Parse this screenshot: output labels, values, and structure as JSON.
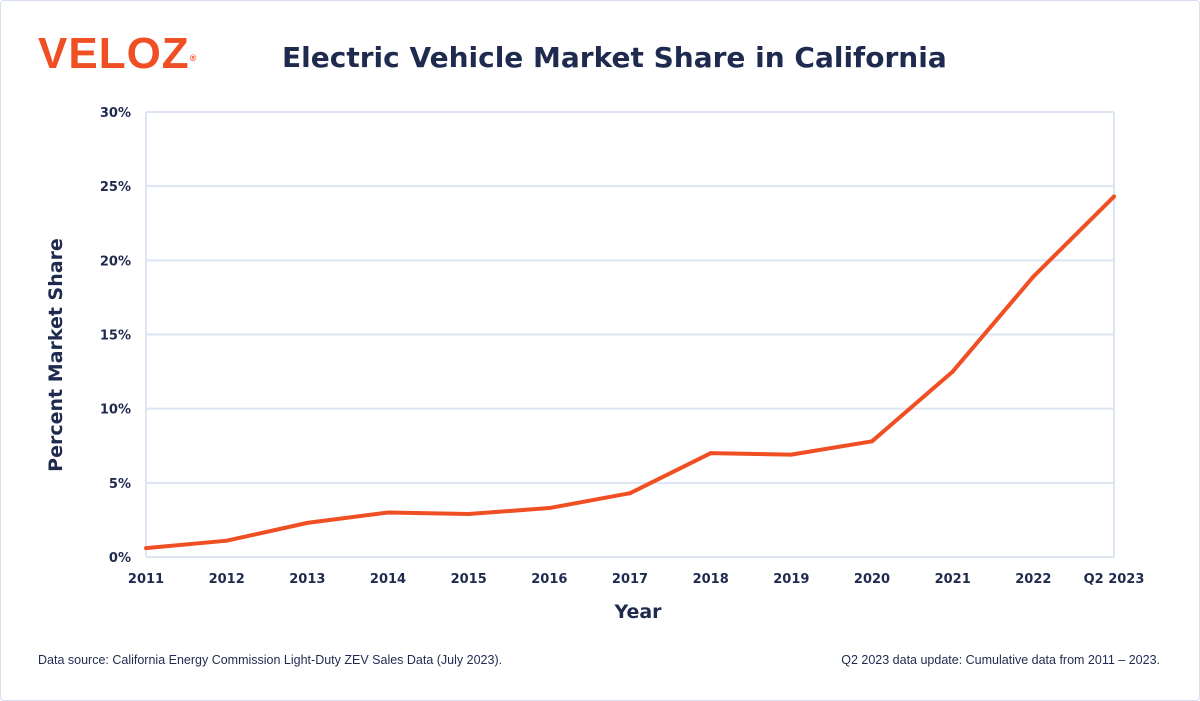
{
  "logo": {
    "text": "VELOZ",
    "mark": "®"
  },
  "footer": {
    "left": "Data source: California Energy Commission Light-Duty ZEV Sales Data (July 2023).",
    "right": "Q2 2023 data update: Cumulative data from 2011 – 2023."
  },
  "colors": {
    "line": "#f04e23",
    "text": "#1f2a4f",
    "grid": "#dde5f3",
    "brand": "#f04e23"
  },
  "chart_data": {
    "type": "line",
    "title": "Electric Vehicle Market Share in California",
    "xlabel": "Year",
    "ylabel": "Percent Market Share",
    "categories": [
      "2011",
      "2012",
      "2013",
      "2014",
      "2015",
      "2016",
      "2017",
      "2018",
      "2019",
      "2020",
      "2021",
      "2022",
      "Q2 2023"
    ],
    "series": [
      {
        "values": [
          0.6,
          1.1,
          2.3,
          3.0,
          2.9,
          3.3,
          4.3,
          7.0,
          6.9,
          7.8,
          12.5,
          18.9,
          24.3
        ]
      }
    ],
    "ylim": [
      0,
      30
    ],
    "yticks": [
      0,
      5,
      10,
      15,
      20,
      25,
      30
    ],
    "ytick_labels": [
      "0%",
      "5%",
      "10%",
      "15%",
      "20%",
      "25%",
      "30%"
    ],
    "grid": true,
    "legend": "none"
  }
}
